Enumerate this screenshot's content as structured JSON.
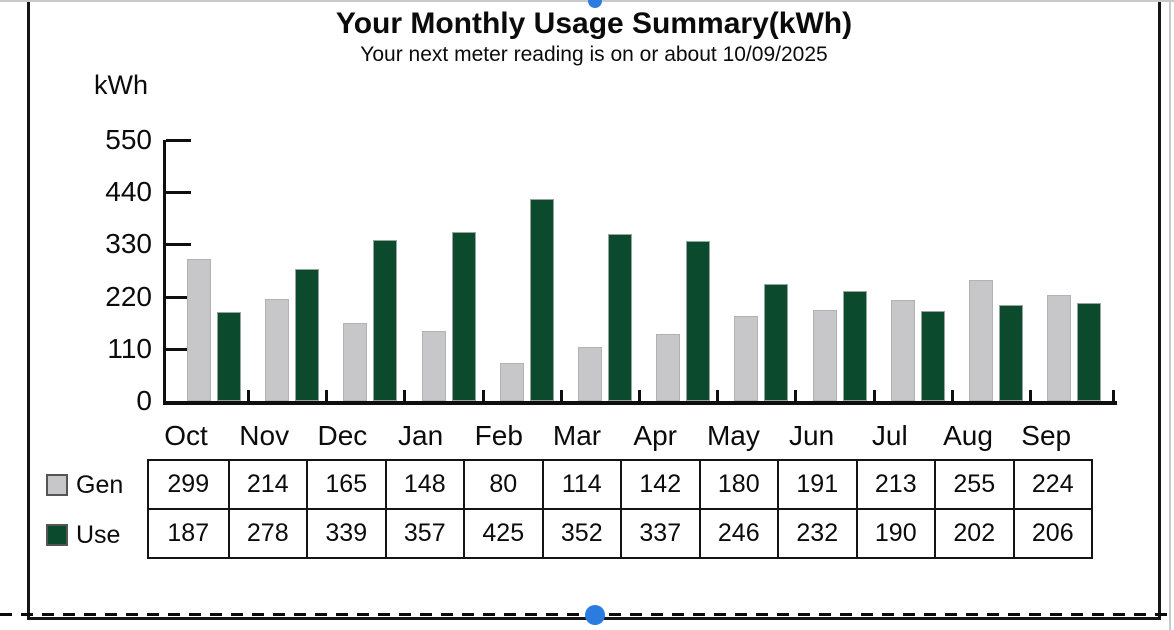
{
  "page": {
    "background": "#ffffff",
    "edge_color": "#c9c9c9"
  },
  "selection": {
    "handle_color": "#2b7ce0",
    "outline_color": "#0a0a0a"
  },
  "chart_data": {
    "type": "bar",
    "title": "Your Monthly Usage Summary(kWh)",
    "subtitle": "Your next meter reading is on or about 10/09/2025",
    "ylabel": "kWh",
    "xlabel": "",
    "ylim": [
      0,
      550
    ],
    "y_ticks": [
      0,
      110,
      220,
      330,
      440,
      550
    ],
    "grid": false,
    "legend_position": "left-of-table",
    "categories": [
      "Oct",
      "Nov",
      "Dec",
      "Jan",
      "Feb",
      "Mar",
      "Apr",
      "May",
      "Jun",
      "Jul",
      "Aug",
      "Sep"
    ],
    "series": [
      {
        "name": "Gen",
        "color": "#c7c7c9",
        "values": [
          299,
          214,
          165,
          148,
          80,
          114,
          142,
          180,
          191,
          213,
          255,
          224
        ]
      },
      {
        "name": "Use",
        "color": "#0c4a2e",
        "values": [
          187,
          278,
          339,
          357,
          425,
          352,
          337,
          246,
          232,
          190,
          202,
          206
        ]
      }
    ]
  }
}
